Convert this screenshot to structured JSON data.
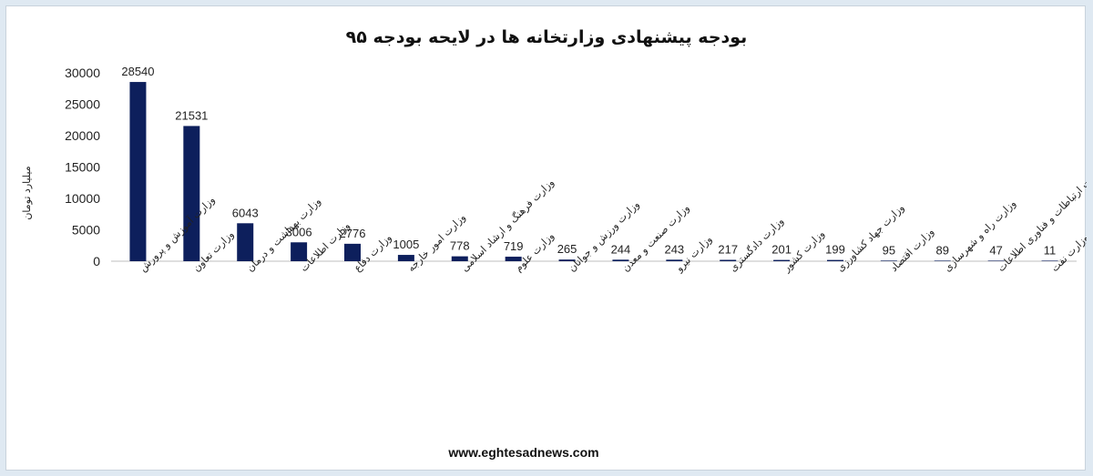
{
  "chart_data": {
    "type": "bar",
    "title": "بودجه پیشنهادی وزارتخانه ها در لایحه بودجه ۹۵",
    "ylabel": "میلیارد تومان",
    "xlabel": "",
    "ylim": [
      0,
      30000
    ],
    "yticks": [
      0,
      5000,
      10000,
      15000,
      20000,
      25000,
      30000
    ],
    "grid": false,
    "legend": "none",
    "bar_color": "#0d1f5c",
    "categories": [
      "وزارت آموزش و پرورش",
      "وزارت تعاون",
      "وزارت بهداشت و درمان",
      "وزارت اطلاعات",
      "وزارت دفاع",
      "وزارت امور خارجه",
      "وزارت فرهنگ و ارشاد اسلامی",
      "وزارت علوم",
      "وزارت ورزش و جوانان",
      "وزارت صنعت و معدن",
      "وزارت نیرو",
      "وزارت دادگستری",
      "وزارت کشور",
      "وزارت جهاد کشاورزی",
      "وزارت اقتصاد",
      "وزارت راه و شهرسازی",
      "وزارت ارتباطات و فناوری اطلاعات",
      "وزارت نفت"
    ],
    "values": [
      28540,
      21531,
      6043,
      3006,
      2776,
      1005,
      778,
      719,
      265,
      244,
      243,
      217,
      201,
      199,
      95,
      89,
      47,
      11
    ]
  },
  "footer": {
    "source": "www.eghtesadnews.com"
  }
}
